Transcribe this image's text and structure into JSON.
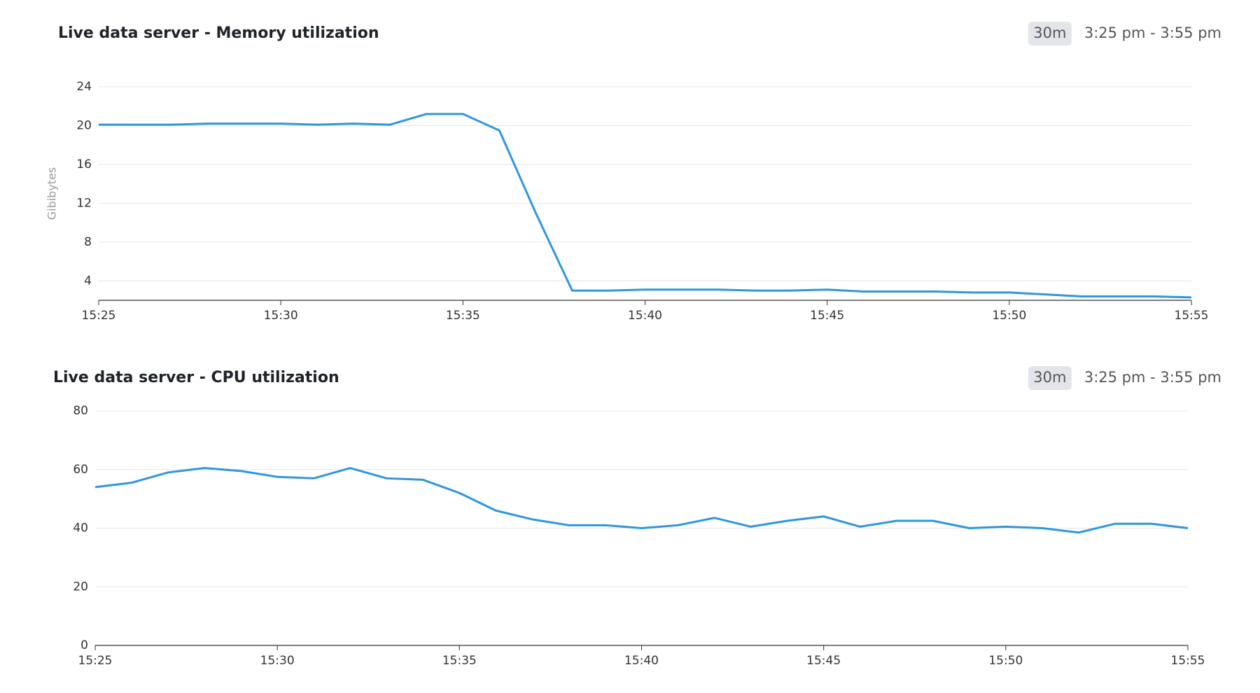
{
  "chart_data": [
    {
      "type": "line",
      "title": "Live data server - Memory utilization",
      "range_badge": "30m",
      "time_range": "3:25 pm - 3:55 pm",
      "y_label": "Gibibytes",
      "x": [
        "15:25",
        "15:26",
        "15:27",
        "15:28",
        "15:29",
        "15:30",
        "15:31",
        "15:32",
        "15:33",
        "15:34",
        "15:35",
        "15:36",
        "15:37",
        "15:38",
        "15:39",
        "15:40",
        "15:41",
        "15:42",
        "15:43",
        "15:44",
        "15:45",
        "15:46",
        "15:47",
        "15:48",
        "15:49",
        "15:50",
        "15:51",
        "15:52",
        "15:53",
        "15:54",
        "15:55"
      ],
      "values": [
        20.1,
        20.1,
        20.1,
        20.2,
        20.2,
        20.2,
        20.1,
        20.2,
        20.1,
        21.2,
        21.2,
        19.5,
        11,
        3.0,
        3.0,
        3.1,
        3.1,
        3.1,
        3.0,
        3.0,
        3.1,
        2.9,
        2.9,
        2.9,
        2.8,
        2.8,
        2.6,
        2.4,
        2.4,
        2.4,
        2.3
      ],
      "color": "#2f96e0",
      "ylim": [
        2,
        24
      ],
      "yticks": [
        4,
        8,
        12,
        16,
        20,
        24
      ],
      "xticks": [
        "15:25",
        "15:30",
        "15:35",
        "15:40",
        "15:45",
        "15:50",
        "15:55"
      ],
      "grid": true
    },
    {
      "type": "line",
      "title": "Live data server - CPU utilization",
      "range_badge": "30m",
      "time_range": "3:25 pm - 3:55 pm",
      "x": [
        "15:25",
        "15:26",
        "15:27",
        "15:28",
        "15:29",
        "15:30",
        "15:31",
        "15:32",
        "15:33",
        "15:34",
        "15:35",
        "15:36",
        "15:37",
        "15:38",
        "15:39",
        "15:40",
        "15:41",
        "15:42",
        "15:43",
        "15:44",
        "15:45",
        "15:46",
        "15:47",
        "15:48",
        "15:49",
        "15:50",
        "15:51",
        "15:52",
        "15:53",
        "15:54",
        "15:55"
      ],
      "values": [
        54,
        55.5,
        59,
        60.5,
        59.5,
        57.5,
        57,
        60.5,
        57,
        56.5,
        52,
        46,
        43,
        41,
        41,
        40,
        41,
        43.5,
        40.5,
        42.5,
        44,
        40.5,
        42.5,
        42.5,
        40,
        40.5,
        40,
        38.5,
        41.5,
        41.5,
        40
      ],
      "color": "#2f96e0",
      "ylim": [
        0,
        80
      ],
      "yticks": [
        0,
        20,
        40,
        60,
        80
      ],
      "xticks": [
        "15:25",
        "15:30",
        "15:35",
        "15:40",
        "15:45",
        "15:50",
        "15:55"
      ],
      "grid": true
    }
  ]
}
